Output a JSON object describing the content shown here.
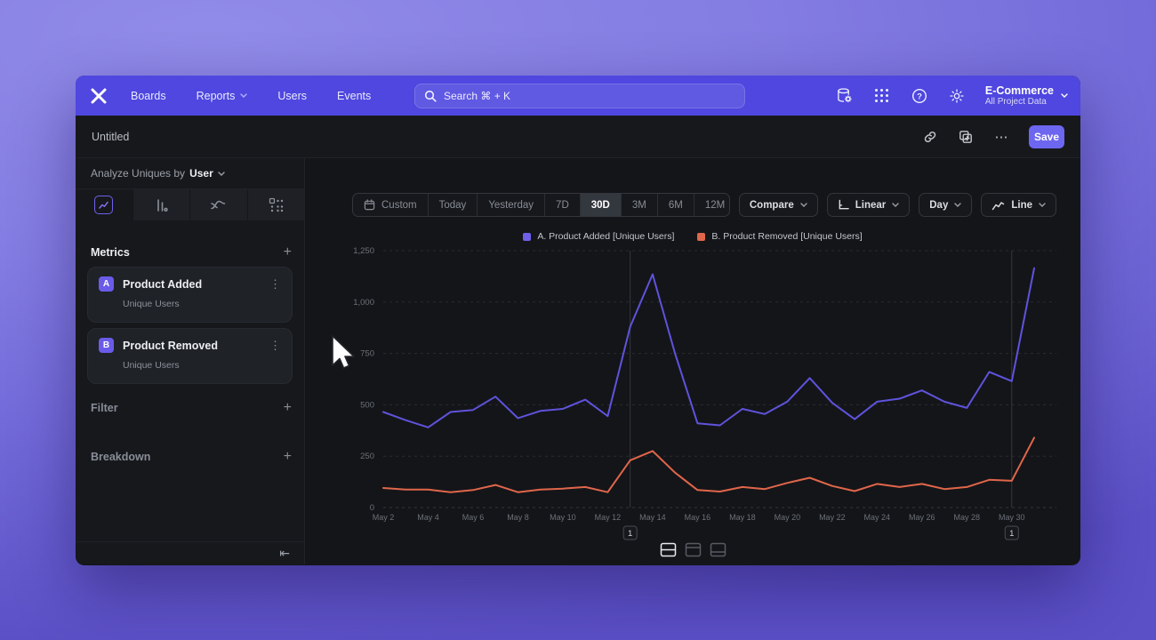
{
  "nav": {
    "menu": [
      {
        "label": "Boards",
        "chevron": false
      },
      {
        "label": "Reports",
        "chevron": true
      },
      {
        "label": "Users",
        "chevron": false
      },
      {
        "label": "Events",
        "chevron": false
      }
    ],
    "search_placeholder": "Search  ⌘ + K",
    "icons": [
      "data-settings",
      "apps-grid",
      "help",
      "settings-gear"
    ],
    "project": {
      "name": "E-Commerce",
      "scope": "All Project Data"
    }
  },
  "titlebar": {
    "title": "Untitled",
    "save_label": "Save"
  },
  "sidebar": {
    "analyze_prefix": "Analyze Uniques by",
    "analyze_value": "User",
    "metrics_title": "Metrics",
    "add_symbol": "+",
    "metrics": [
      {
        "badge": "A",
        "name": "Product Added",
        "sub": "Unique Users"
      },
      {
        "badge": "B",
        "name": "Product Removed",
        "sub": "Unique Users"
      }
    ],
    "sections": [
      {
        "label": "Filter"
      },
      {
        "label": "Breakdown"
      }
    ],
    "collapse_symbol": "⇤"
  },
  "toolbar": {
    "ranges": [
      "Custom",
      "Today",
      "Yesterday",
      "7D",
      "30D",
      "3M",
      "6M",
      "12M"
    ],
    "selected_range": "30D",
    "compare_label": "Compare",
    "scale_label": "Linear",
    "interval_label": "Day",
    "chart_type_label": "Line"
  },
  "legend": [
    {
      "label": "A. Product Added [Unique Users]",
      "color": "#6e60e8"
    },
    {
      "label": "B. Product Removed [Unique Users]",
      "color": "#e0674b"
    }
  ],
  "chart_data": {
    "type": "line",
    "title": "",
    "x": [
      "May 2",
      "May 3",
      "May 4",
      "May 5",
      "May 6",
      "May 7",
      "May 8",
      "May 9",
      "May 10",
      "May 11",
      "May 12",
      "May 13",
      "May 14",
      "May 15",
      "May 16",
      "May 17",
      "May 18",
      "May 19",
      "May 20",
      "May 21",
      "May 22",
      "May 23",
      "May 24",
      "May 25",
      "May 26",
      "May 27",
      "May 28",
      "May 29",
      "May 30",
      "May 31"
    ],
    "x_tick_every": 2,
    "series": [
      {
        "name": "A. Product Added [Unique Users]",
        "color": "#5f53dc",
        "values": [
          465,
          425,
          390,
          465,
          475,
          540,
          435,
          470,
          480,
          525,
          445,
          880,
          1135,
          750,
          410,
          400,
          480,
          455,
          515,
          630,
          510,
          430,
          515,
          530,
          570,
          515,
          485,
          660,
          615,
          1165
        ]
      },
      {
        "name": "B. Product Removed [Unique Users]",
        "color": "#e0664a",
        "values": [
          95,
          88,
          88,
          75,
          85,
          110,
          75,
          88,
          92,
          100,
          75,
          230,
          275,
          170,
          85,
          78,
          100,
          90,
          120,
          145,
          105,
          80,
          115,
          100,
          115,
          90,
          100,
          135,
          130,
          340
        ]
      }
    ],
    "ylim": [
      0,
      1250
    ],
    "yticks": [
      {
        "v": 0,
        "label": "0"
      },
      {
        "v": 250,
        "label": "250"
      },
      {
        "v": 500,
        "label": "500"
      },
      {
        "v": 750,
        "label": "750"
      },
      {
        "v": 1000,
        "label": "1,000"
      },
      {
        "v": 1250,
        "label": "1,250"
      }
    ],
    "grid": "horizontal-dashed",
    "legend_position": "top-center",
    "annotations": [
      {
        "index": 11,
        "label": "1"
      },
      {
        "index": 28,
        "label": "1"
      }
    ]
  }
}
